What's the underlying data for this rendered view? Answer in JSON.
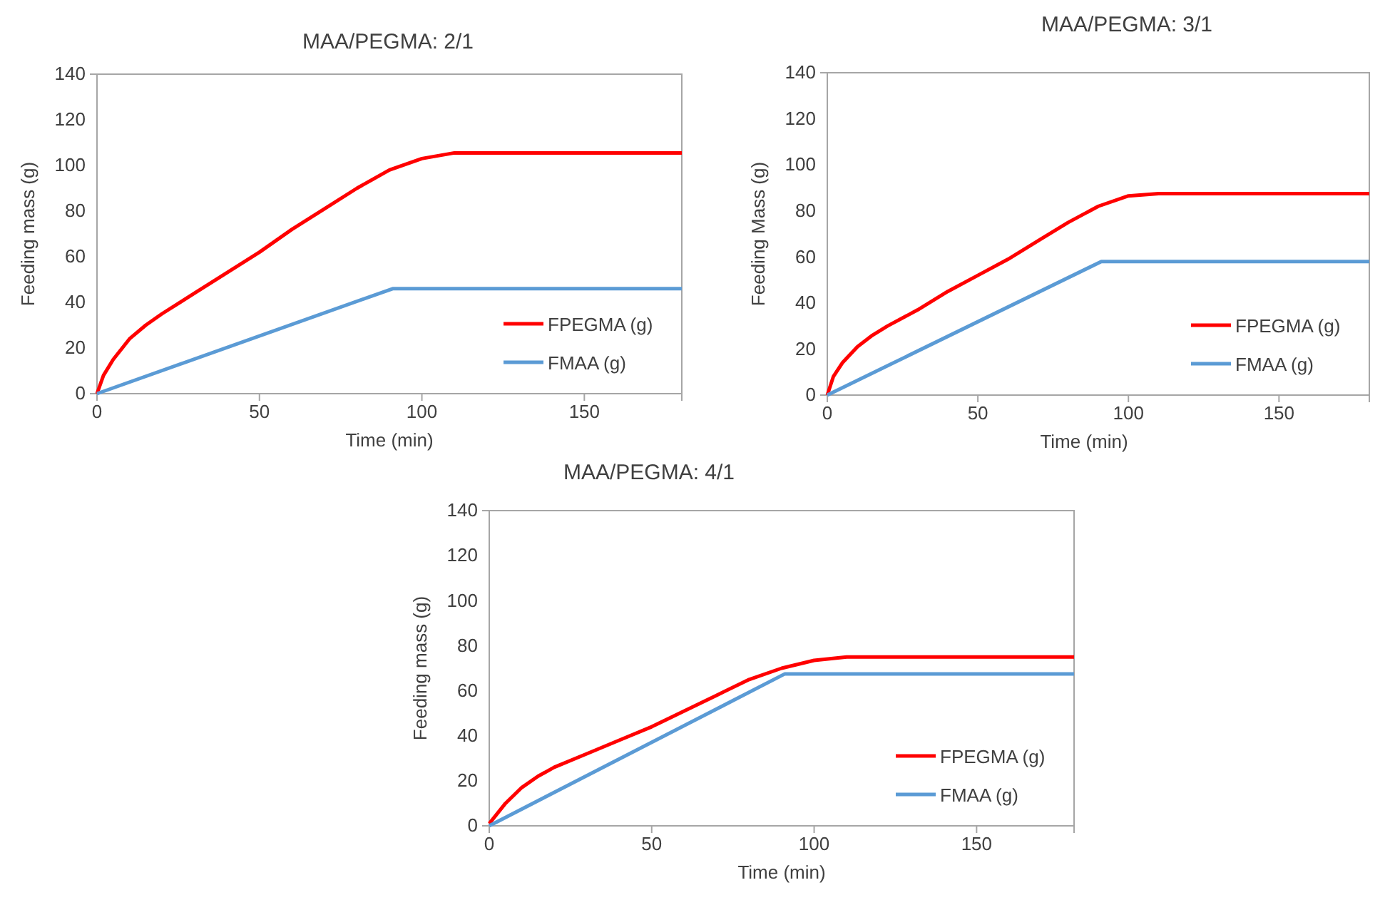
{
  "chart_data": [
    {
      "type": "line",
      "title": "MAA/PEGMA: 2/1",
      "xlabel": "Time (min)",
      "ylabel": "Feeding mass (g)",
      "xlim": [
        0,
        180
      ],
      "xticks": [
        0,
        50,
        100,
        150
      ],
      "ylim": [
        0,
        140
      ],
      "yticks": [
        0,
        20,
        40,
        60,
        80,
        100,
        120,
        140
      ],
      "grid": false,
      "legend": "bottom right",
      "marker": "none",
      "line_style": "solid",
      "series": [
        {
          "name": "FPEGMA (g)",
          "color": "#ff0000",
          "x": [
            0,
            2,
            5,
            10,
            15,
            20,
            30,
            40,
            50,
            60,
            70,
            80,
            90,
            100,
            110,
            180
          ],
          "values": [
            0,
            8,
            15,
            24,
            30,
            35,
            44,
            53,
            62,
            72,
            81,
            90,
            98,
            103,
            105.5,
            105.5
          ]
        },
        {
          "name": "FMAA (g)",
          "color": "#5b9bd5",
          "x": [
            0,
            91,
            180
          ],
          "values": [
            0,
            46,
            46
          ]
        }
      ]
    },
    {
      "type": "line",
      "title": "MAA/PEGMA: 3/1",
      "xlabel": "Time (min)",
      "ylabel": "Feeding Mass (g)",
      "xlim": [
        0,
        180
      ],
      "xticks": [
        0,
        50,
        100,
        150
      ],
      "ylim": [
        0,
        140
      ],
      "yticks": [
        0,
        20,
        40,
        60,
        80,
        100,
        120,
        140
      ],
      "grid": false,
      "legend": "bottom right",
      "marker": "none",
      "line_style": "solid",
      "series": [
        {
          "name": "FPEGMA (g)",
          "color": "#ff0000",
          "x": [
            0,
            2,
            5,
            10,
            15,
            20,
            30,
            40,
            50,
            60,
            70,
            80,
            90,
            100,
            110,
            180
          ],
          "values": [
            0,
            8,
            14,
            21,
            26,
            30,
            37,
            45,
            52,
            59,
            67,
            75,
            82,
            86.5,
            87.5,
            87.5
          ]
        },
        {
          "name": "FMAA (g)",
          "color": "#5b9bd5",
          "x": [
            0,
            91,
            180
          ],
          "values": [
            0,
            58,
            58
          ]
        }
      ]
    },
    {
      "type": "line",
      "title": "MAA/PEGMA: 4/1",
      "xlabel": "Time (min)",
      "ylabel": "Feeding mass (g)",
      "xlim": [
        0,
        180
      ],
      "xticks": [
        0,
        50,
        100,
        150
      ],
      "ylim": [
        0,
        140
      ],
      "yticks": [
        0,
        20,
        40,
        60,
        80,
        100,
        120,
        140
      ],
      "grid": false,
      "legend": "bottom right",
      "marker": "none",
      "line_style": "solid",
      "series": [
        {
          "name": "FPEGMA (g)",
          "color": "#ff0000",
          "x": [
            0,
            5,
            10,
            15,
            20,
            30,
            40,
            50,
            60,
            70,
            80,
            90,
            100,
            110,
            180
          ],
          "values": [
            1,
            10,
            17,
            22,
            26,
            32,
            38,
            44,
            51,
            58,
            65,
            70,
            73.5,
            75,
            75
          ]
        },
        {
          "name": "FMAA (g)",
          "color": "#5b9bd5",
          "x": [
            0,
            91,
            180
          ],
          "values": [
            0,
            67.5,
            67.5
          ]
        }
      ]
    }
  ]
}
